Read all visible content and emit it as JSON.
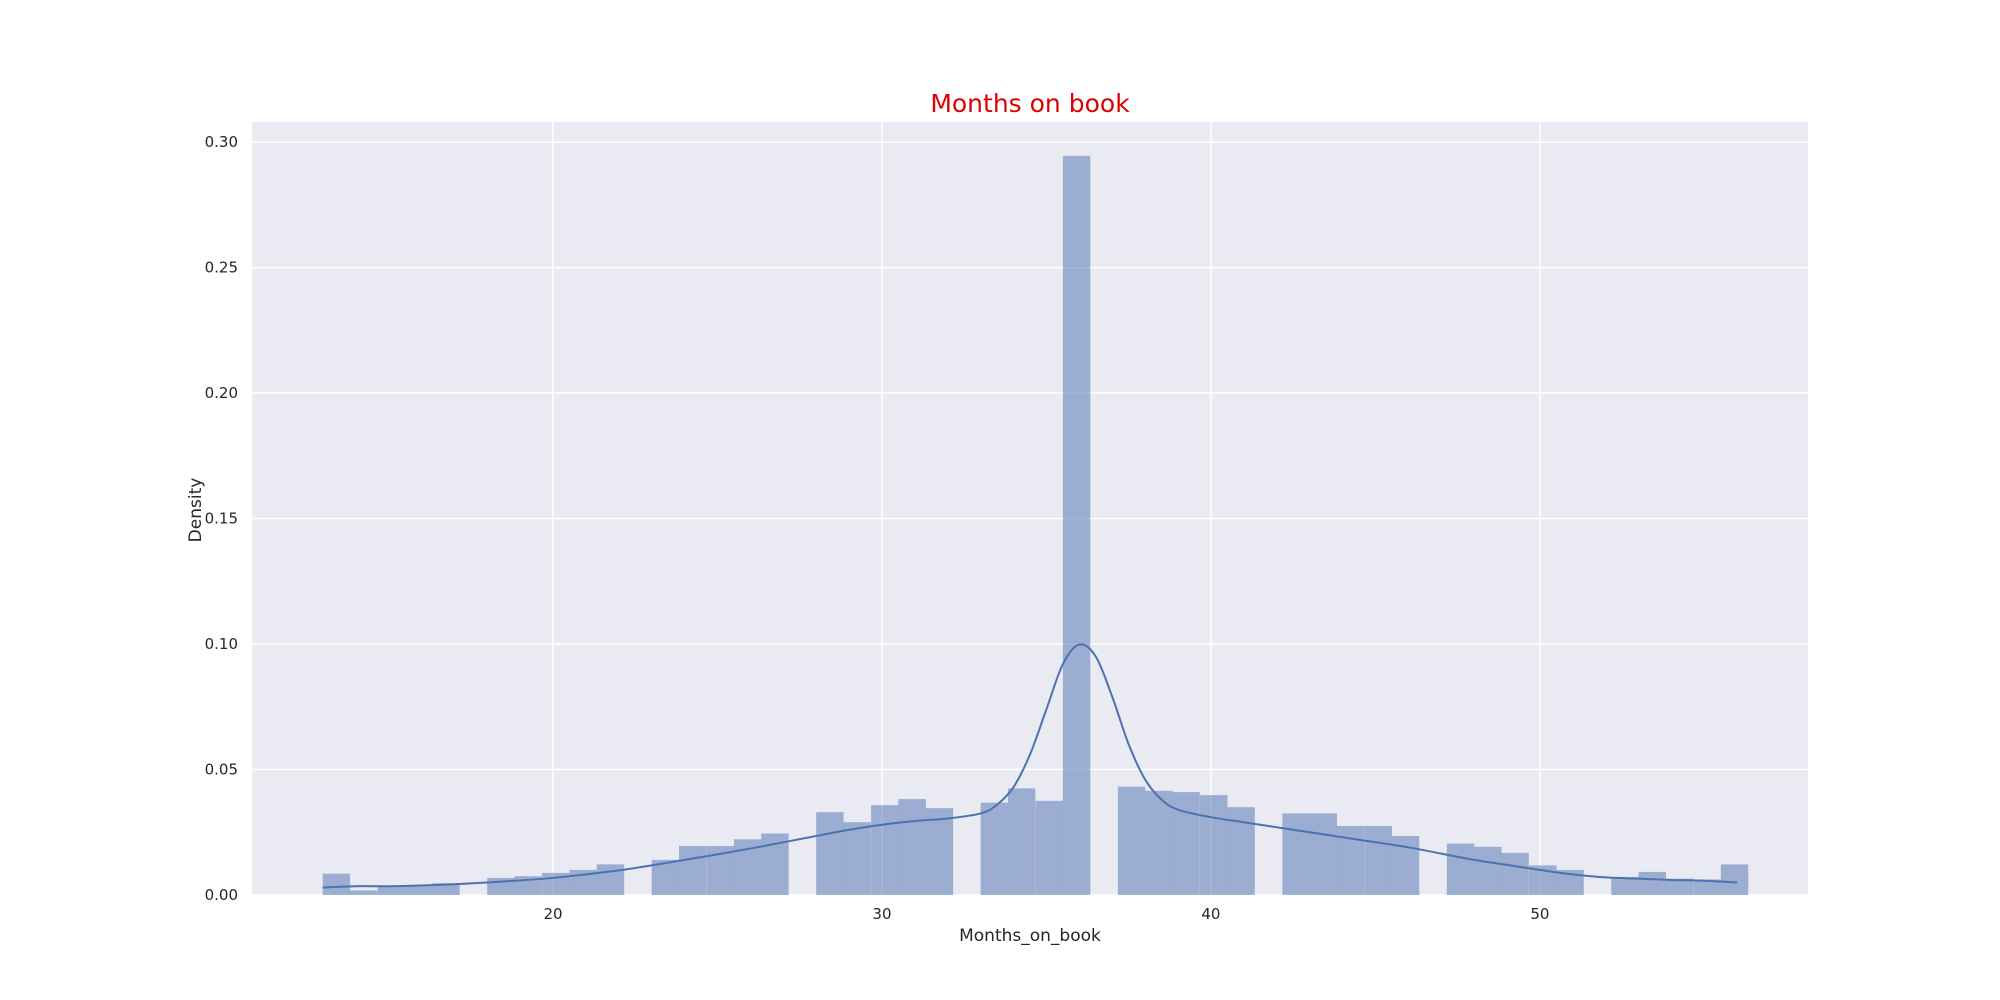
{
  "chart_data": {
    "type": "bar",
    "title": "Months on book",
    "xlabel": "Months_on_book",
    "ylabel": "Density",
    "xlim": [
      10.85,
      58.15
    ],
    "ylim": [
      0,
      0.308
    ],
    "xticks": [
      20,
      30,
      40,
      50
    ],
    "yticks": [
      0.0,
      0.05,
      0.1,
      0.15,
      0.2,
      0.25,
      0.3
    ],
    "grid": true,
    "bin_width": 0.8333,
    "histogram": {
      "bin_starts": [
        13.0,
        13.83,
        14.67,
        15.5,
        16.33,
        17.17,
        18.0,
        18.83,
        19.67,
        20.5,
        21.33,
        22.17,
        23.0,
        23.83,
        24.67,
        25.5,
        26.33,
        27.17,
        28.0,
        28.83,
        29.67,
        30.5,
        31.33,
        32.17,
        33.0,
        33.83,
        34.67,
        35.5,
        36.33,
        37.17,
        38.0,
        38.83,
        39.67,
        40.5,
        41.33,
        42.17,
        43.0,
        43.83,
        44.67,
        45.5,
        46.33,
        47.17,
        48.0,
        48.83,
        49.67,
        50.5,
        51.33,
        52.17,
        53.0,
        53.83,
        54.67,
        55.5
      ],
      "density": [
        0.0085,
        0.0018,
        0.0036,
        0.0036,
        0.0047,
        0.0,
        0.0068,
        0.0075,
        0.0088,
        0.01,
        0.0122,
        0.0,
        0.014,
        0.0195,
        0.0195,
        0.0222,
        0.0245,
        0.0,
        0.033,
        0.029,
        0.0358,
        0.0382,
        0.0346,
        0.0,
        0.0368,
        0.0425,
        0.0375,
        0.2945,
        0.0,
        0.0432,
        0.0415,
        0.041,
        0.0398,
        0.035,
        0.0,
        0.0325,
        0.0325,
        0.0275,
        0.0275,
        0.0235,
        0.0,
        0.0205,
        0.0192,
        0.0168,
        0.0118,
        0.01,
        0.0,
        0.0072,
        0.0092,
        0.0065,
        0.0062,
        0.0122
      ]
    },
    "kde": {
      "x": [
        13,
        14,
        15,
        16,
        17,
        18,
        19,
        20,
        21,
        22,
        23,
        24,
        25,
        26,
        27,
        28,
        29,
        30,
        31,
        32,
        33,
        33.5,
        34,
        34.5,
        35,
        35.5,
        36,
        36.5,
        37,
        37.5,
        38,
        38.5,
        39,
        40,
        41,
        42,
        43,
        44,
        45,
        46,
        47,
        48,
        49,
        50,
        51,
        52,
        53,
        54,
        55,
        56
      ],
      "y": [
        0.003,
        0.0035,
        0.0035,
        0.0038,
        0.0043,
        0.005,
        0.0058,
        0.0068,
        0.0082,
        0.0098,
        0.0118,
        0.014,
        0.0162,
        0.0185,
        0.021,
        0.0235,
        0.026,
        0.028,
        0.0295,
        0.0305,
        0.0325,
        0.036,
        0.043,
        0.056,
        0.074,
        0.092,
        0.0998,
        0.095,
        0.079,
        0.06,
        0.046,
        0.038,
        0.034,
        0.031,
        0.029,
        0.027,
        0.025,
        0.023,
        0.021,
        0.019,
        0.0165,
        0.014,
        0.012,
        0.01,
        0.0082,
        0.007,
        0.0065,
        0.006,
        0.0057,
        0.005
      ]
    },
    "colors": {
      "background": "#eaeaf2",
      "grid": "#ffffff",
      "bar_fill": "#4c72b0",
      "bar_opacity": 0.5,
      "kde_line": "#4c72b0",
      "title": "#e00000",
      "text": "#262626"
    }
  }
}
